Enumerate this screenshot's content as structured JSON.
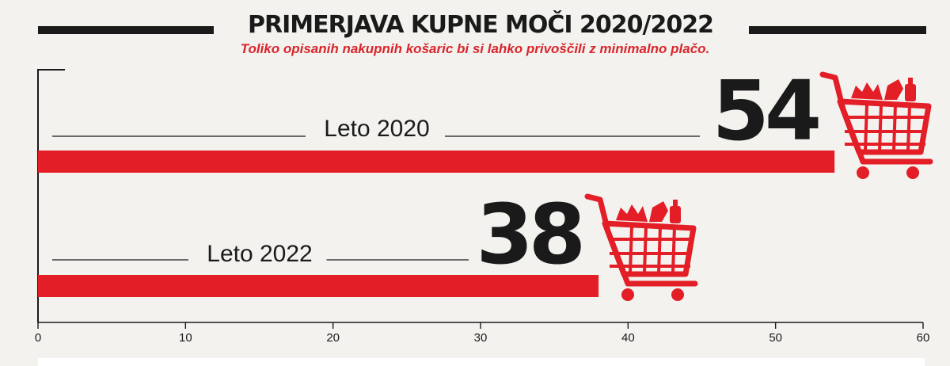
{
  "title": "PRIMERJAVA KUPNE MOČI  2020/2022",
  "subtitle": "Toliko opisanih nakupnih košaric bi si lahko privoščili z minimalno plačo.",
  "colors": {
    "accent": "#e31e26",
    "text": "#1a1a1a",
    "background": "#f3f2ef"
  },
  "icons": [
    "shopping-cart-icon"
  ],
  "chart_data": {
    "type": "bar",
    "orientation": "horizontal",
    "categories": [
      "Leto 2020",
      "Leto 2022"
    ],
    "values": [
      54,
      38
    ],
    "value_labels": [
      "54",
      "38"
    ],
    "xlim": [
      0,
      60
    ],
    "xticks": [
      0,
      10,
      20,
      30,
      40,
      50,
      60
    ],
    "xtick_labels": [
      "0",
      "10",
      "20",
      "30",
      "40",
      "50",
      "60"
    ],
    "grid": false,
    "legend": "none"
  }
}
